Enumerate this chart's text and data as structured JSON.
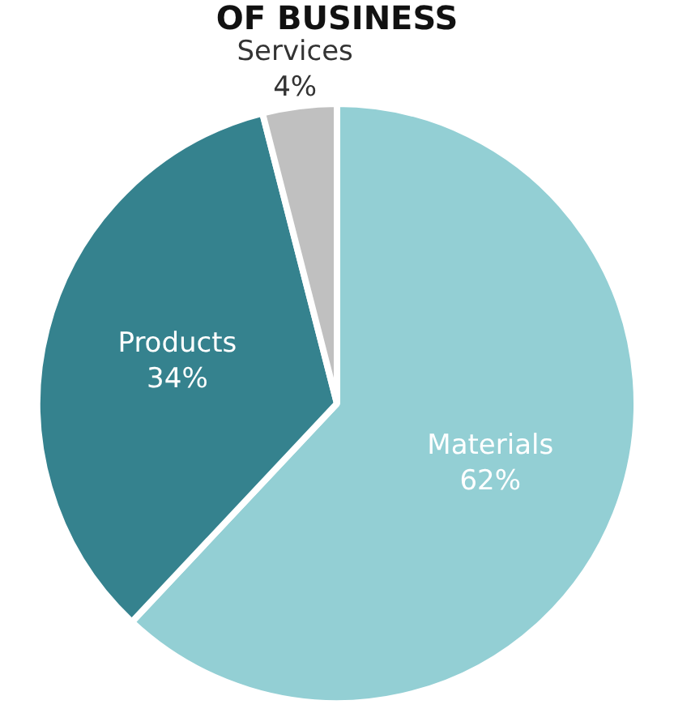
{
  "chart_data": {
    "type": "pie",
    "title": "OF BUSINESS",
    "categories": [
      "Materials",
      "Products",
      "Services"
    ],
    "values": [
      62,
      34,
      4
    ],
    "colors": [
      "#93cfd4",
      "#35828e",
      "#c0c0c0"
    ],
    "value_labels": [
      "62%",
      "34%",
      "4%"
    ],
    "legend": false
  }
}
